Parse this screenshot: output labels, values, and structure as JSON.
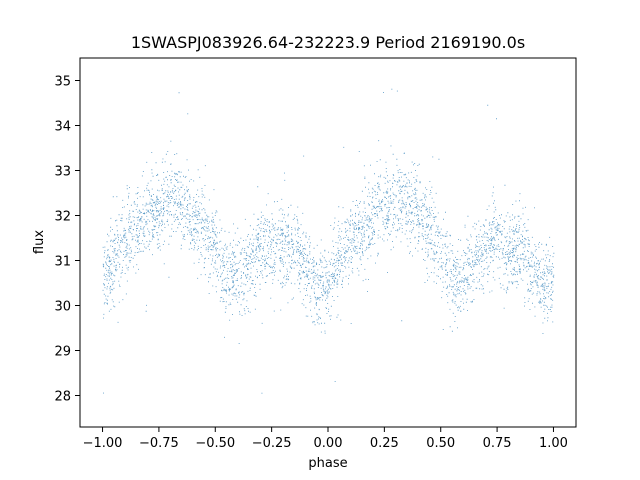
{
  "chart_data": {
    "type": "scatter",
    "title": "1SWASPJ083926.64-232223.9 Period 2169190.0s",
    "xlabel": "phase",
    "ylabel": "flux",
    "xlim": [
      -1.1,
      1.1
    ],
    "ylim": [
      27.3,
      35.5
    ],
    "xticks": [
      -1.0,
      -0.75,
      -0.5,
      -0.25,
      0.0,
      0.25,
      0.5,
      0.75,
      1.0
    ],
    "xtick_labels": [
      "−1.00",
      "−0.75",
      "−0.50",
      "−0.25",
      "0.00",
      "0.25",
      "0.50",
      "0.75",
      "1.00"
    ],
    "yticks": [
      28,
      29,
      30,
      31,
      32,
      33,
      34,
      35
    ],
    "ytick_labels": [
      "28",
      "29",
      "30",
      "31",
      "32",
      "33",
      "34",
      "35"
    ],
    "grid": false,
    "marker_color": "#1f77b4",
    "phase_range": [
      -1.0,
      1.0
    ],
    "flux_profile": {
      "phase": [
        0.0,
        0.05,
        0.1,
        0.15,
        0.2,
        0.25,
        0.3,
        0.35,
        0.4,
        0.45,
        0.5,
        0.55,
        0.6,
        0.65,
        0.7,
        0.75,
        0.8,
        0.85,
        0.9,
        0.95,
        1.0
      ],
      "flux": [
        30.6,
        31.0,
        31.4,
        31.7,
        32.0,
        32.2,
        32.4,
        32.3,
        32.0,
        31.7,
        31.3,
        30.6,
        30.6,
        31.0,
        31.3,
        31.4,
        31.3,
        31.2,
        30.8,
        30.4,
        30.6
      ]
    },
    "flux_scatter": 0.45,
    "point_count": 9000
  }
}
